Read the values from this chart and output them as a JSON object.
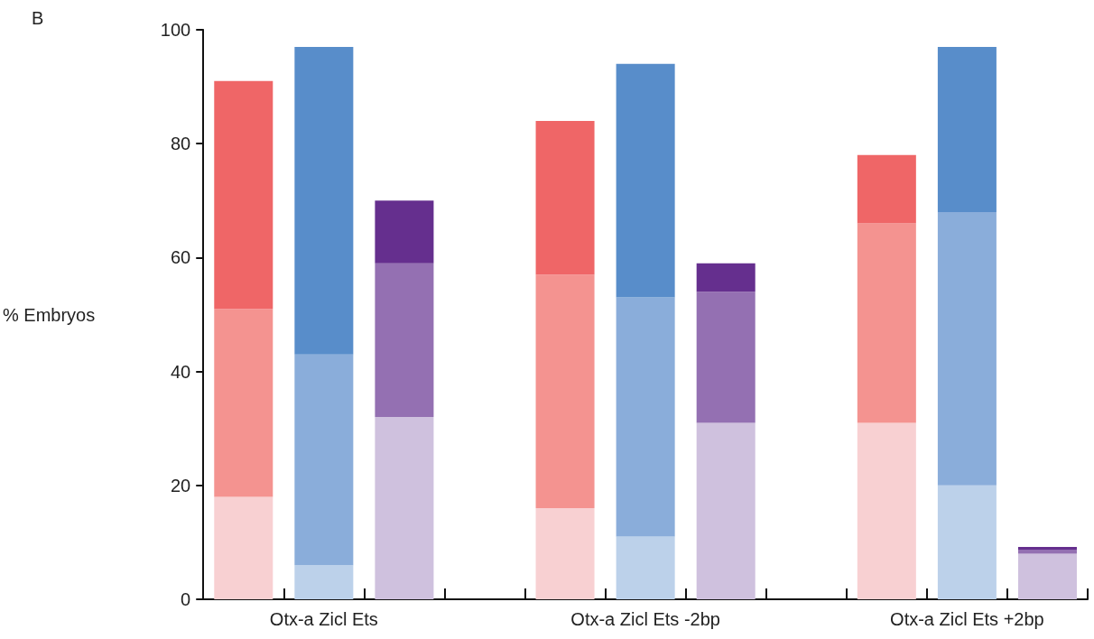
{
  "chart_data": {
    "type": "bar",
    "stacked": true,
    "ylabel": "% Embryos",
    "annotations": [
      "B"
    ],
    "categories": [
      null,
      "Otx-a Zicl Ets",
      null,
      null,
      null,
      "Otx-a Zicl Ets -2bp",
      null,
      null,
      null,
      "Otx-a Zicl Ets +2bp",
      null
    ],
    "series": [
      {
        "values": [
          18,
          6,
          32,
          null,
          16,
          11,
          31,
          null,
          31,
          20,
          8
        ],
        "colors": [
          "#f8d0d2",
          "#bcd1ea",
          "#cfc1de",
          null,
          "#f8d0d2",
          "#bcd1ea",
          "#cfc1de",
          null,
          "#f8d0d2",
          "#bcd1ea",
          "#cfc1de"
        ]
      },
      {
        "values": [
          33,
          37,
          27,
          null,
          41,
          42,
          23,
          null,
          35,
          48,
          0.7
        ],
        "colors": [
          "#f49390",
          "#8aadda",
          "#9470b2",
          null,
          "#f49390",
          "#8aadda",
          "#9470b2",
          null,
          "#f49390",
          "#8aadda",
          "#9470b2"
        ]
      },
      {
        "values": [
          40,
          54,
          11,
          null,
          27,
          41,
          5,
          null,
          12,
          29,
          0.5
        ],
        "colors": [
          "#ef6667",
          "#588dca",
          "#652f8e",
          null,
          "#ef6667",
          "#588dca",
          "#652f8e",
          null,
          "#ef6667",
          "#588dca",
          "#652f8e"
        ]
      }
    ],
    "ylim": [
      0,
      100
    ],
    "yticks": [
      0,
      20,
      40,
      60,
      80,
      100
    ],
    "grid": false
  }
}
